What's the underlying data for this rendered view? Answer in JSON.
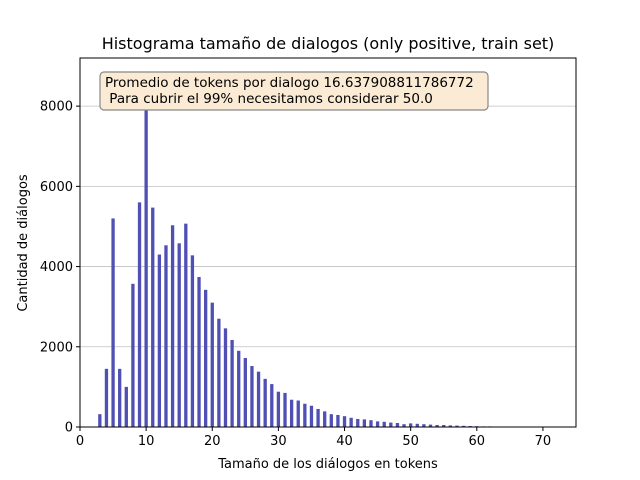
{
  "chart_data": {
    "type": "bar",
    "title": "Histograma tamaño de dialogos (only positive, train set)",
    "xlabel": "Tamaño de los diálogos en tokens",
    "ylabel": "Cantidad de diálogos",
    "xlim": [
      0,
      75
    ],
    "ylim": [
      0,
      9200
    ],
    "xticks": [
      "0",
      "10",
      "20",
      "30",
      "40",
      "50",
      "60",
      "70"
    ],
    "yticks": [
      "0",
      "2000",
      "4000",
      "6000",
      "8000"
    ],
    "grid": "horizontal",
    "bar_color": "#5050b4",
    "annotation": {
      "lines": [
        "Promedio de tokens por dialogo 16.637908811786772",
        " Para cubrir el 99% necesitamos considerar 50.0"
      ],
      "placement": "top-left",
      "box_color": "#fbebd4"
    },
    "x": [
      3,
      4,
      5,
      6,
      7,
      8,
      9,
      10,
      11,
      12,
      13,
      14,
      15,
      16,
      17,
      18,
      19,
      20,
      21,
      22,
      23,
      24,
      25,
      26,
      27,
      28,
      29,
      30,
      31,
      32,
      33,
      34,
      35,
      36,
      37,
      38,
      39,
      40,
      41,
      42,
      43,
      44,
      45,
      46,
      47,
      48,
      49,
      50,
      51,
      52,
      53,
      54,
      55,
      56,
      57,
      58,
      59,
      60,
      61,
      62,
      63,
      64,
      65,
      66,
      67,
      68,
      69,
      70,
      71,
      72
    ],
    "values": [
      320,
      1450,
      5200,
      1450,
      1000,
      3570,
      5600,
      8850,
      5470,
      4300,
      4530,
      5030,
      4580,
      5070,
      4280,
      3740,
      3420,
      3100,
      2700,
      2460,
      2170,
      1900,
      1720,
      1520,
      1380,
      1200,
      1070,
      880,
      850,
      680,
      660,
      580,
      530,
      450,
      390,
      320,
      300,
      270,
      230,
      200,
      190,
      170,
      140,
      130,
      110,
      100,
      70,
      90,
      80,
      70,
      60,
      50,
      50,
      40,
      35,
      30,
      25,
      20,
      15,
      15,
      10,
      10,
      8,
      8,
      5,
      5,
      4,
      3,
      3,
      3
    ]
  }
}
